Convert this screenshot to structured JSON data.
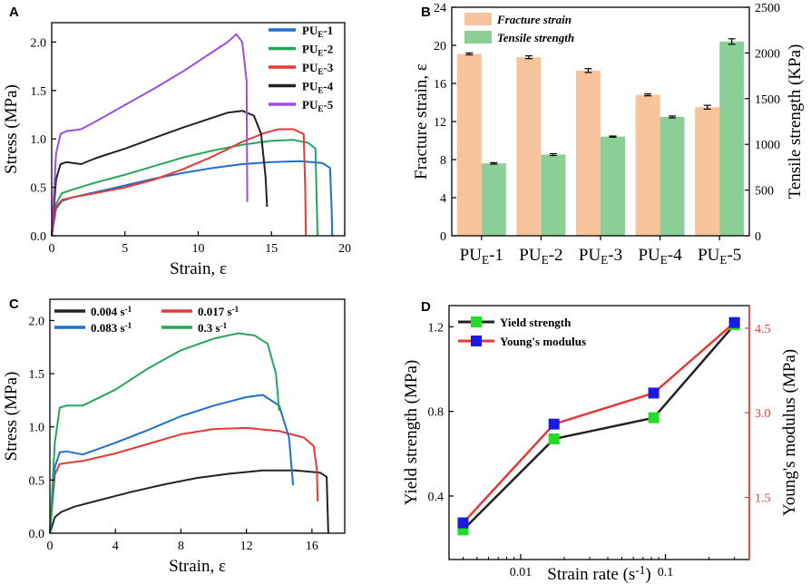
{
  "chart_data": [
    {
      "panel": "A",
      "type": "line",
      "xlabel": "Strain, ε",
      "ylabel": "Stress (MPa)",
      "xlim": [
        0,
        20
      ],
      "ylim": [
        0,
        2.2
      ],
      "xticks": [
        0,
        5,
        10,
        15,
        20
      ],
      "yticks": [
        0.0,
        0.5,
        1.0,
        1.5,
        2.0
      ],
      "xtick_labels": [
        "0",
        "5",
        "10",
        "15",
        "20"
      ],
      "ytick_labels": [
        "0.0",
        "0.5",
        "1.0",
        "1.5",
        "2.0"
      ],
      "legend_position": "top-right",
      "series": [
        {
          "name": "PU",
          "sub": "E",
          "suffix": "-1",
          "color": "#1f6fd1",
          "x": [
            0,
            0.3,
            0.7,
            1.5,
            3,
            5,
            7,
            9,
            11,
            13,
            15,
            17,
            18.5,
            19,
            19.1,
            19.15
          ],
          "y": [
            0,
            0.28,
            0.36,
            0.4,
            0.45,
            0.52,
            0.59,
            0.65,
            0.7,
            0.74,
            0.76,
            0.77,
            0.75,
            0.7,
            0.3,
            0.0
          ]
        },
        {
          "name": "PU",
          "sub": "E",
          "suffix": "-2",
          "color": "#26a65b",
          "x": [
            0,
            0.3,
            0.7,
            1.5,
            3,
            5,
            7,
            9,
            11,
            13,
            15,
            16.5,
            17.5,
            18.0,
            18.1,
            18.15
          ],
          "y": [
            0,
            0.33,
            0.44,
            0.48,
            0.55,
            0.63,
            0.72,
            0.81,
            0.88,
            0.94,
            0.98,
            0.99,
            0.96,
            0.9,
            0.3,
            0.0
          ]
        },
        {
          "name": "PU",
          "sub": "E",
          "suffix": "-3",
          "color": "#e53935",
          "x": [
            0,
            0.3,
            0.7,
            1.5,
            3,
            5,
            7,
            9,
            11,
            13,
            14.5,
            15.5,
            16.5,
            17.2,
            17.3,
            17.35
          ],
          "y": [
            0,
            0.3,
            0.37,
            0.4,
            0.44,
            0.5,
            0.58,
            0.69,
            0.82,
            0.97,
            1.06,
            1.1,
            1.1,
            1.05,
            0.5,
            0.0
          ]
        },
        {
          "name": "PU",
          "sub": "E",
          "suffix": "-4",
          "color": "#222222",
          "x": [
            0,
            0.3,
            0.6,
            1,
            2,
            3,
            5,
            7,
            9,
            11,
            12,
            13,
            13.8,
            14.3,
            14.6,
            14.7
          ],
          "y": [
            0,
            0.58,
            0.74,
            0.76,
            0.74,
            0.8,
            0.9,
            1.01,
            1.12,
            1.22,
            1.27,
            1.29,
            1.24,
            1.05,
            0.6,
            0.3
          ]
        },
        {
          "name": "PU",
          "sub": "E",
          "suffix": "-5",
          "color": "#9b4fe0",
          "x": [
            0,
            0.3,
            0.6,
            1,
            2,
            3,
            5,
            7,
            9,
            11,
            12,
            12.6,
            13.0,
            13.3,
            13.35
          ],
          "y": [
            0,
            0.85,
            1.05,
            1.08,
            1.1,
            1.18,
            1.35,
            1.52,
            1.7,
            1.9,
            2.0,
            2.08,
            2.0,
            1.6,
            0.35
          ]
        }
      ]
    },
    {
      "panel": "B",
      "type": "bar",
      "categories": [
        "PU",
        "PU",
        "PU",
        "PU",
        "PU"
      ],
      "category_subs": [
        "E",
        "E",
        "E",
        "E",
        "E"
      ],
      "category_suffixes": [
        "-1",
        "-2",
        "-3",
        "-4",
        "-5"
      ],
      "ylabel": "Fracture strain, ε",
      "ylabel_right": "Tensile strength (KPa)",
      "ylim": [
        0,
        24
      ],
      "ylim_right": [
        0,
        2500
      ],
      "yticks": [
        0,
        4,
        8,
        12,
        16,
        20,
        24
      ],
      "ytick_labels": [
        "0",
        "4",
        "8",
        "12",
        "16",
        "20",
        "24"
      ],
      "yticks_right": [
        0,
        500,
        1000,
        1500,
        2000,
        2500
      ],
      "ytick_labels_right": [
        "0",
        "500",
        "1000",
        "1500",
        "2000",
        "2500"
      ],
      "legend_position": "top-left",
      "series": [
        {
          "name": "Fracture strain",
          "axis": "left",
          "color": "#f7c49b",
          "values": [
            19.1,
            18.75,
            17.35,
            14.8,
            13.5
          ],
          "errors": [
            0.1,
            0.15,
            0.2,
            0.1,
            0.2
          ]
        },
        {
          "name": "Tensile strength",
          "axis": "right",
          "color": "#8ccf96",
          "values": [
            792,
            888,
            1085,
            1300,
            2125
          ],
          "errors": [
            8,
            10,
            6,
            10,
            30
          ]
        }
      ]
    },
    {
      "panel": "C",
      "type": "line",
      "xlabel": "Strain, ε",
      "ylabel": "Stress (MPa)",
      "xlim": [
        0,
        18
      ],
      "ylim": [
        0,
        2.2
      ],
      "xticks": [
        0,
        4,
        8,
        12,
        16
      ],
      "yticks": [
        0.0,
        0.5,
        1.0,
        1.5,
        2.0
      ],
      "xtick_labels": [
        "0",
        "4",
        "8",
        "12",
        "16"
      ],
      "ytick_labels": [
        "0.0",
        "0.5",
        "1.0",
        "1.5",
        "2.0"
      ],
      "legend_position": "top",
      "series": [
        {
          "name": "0.004 s",
          "sup": "-1",
          "color": "#222222",
          "x": [
            0,
            0.3,
            0.7,
            1.5,
            3,
            5,
            7,
            9,
            11,
            13,
            15,
            16.5,
            16.9,
            17.0
          ],
          "y": [
            0,
            0.15,
            0.2,
            0.25,
            0.31,
            0.39,
            0.46,
            0.52,
            0.56,
            0.59,
            0.59,
            0.57,
            0.53,
            0.0
          ]
        },
        {
          "name": "0.017 s",
          "sup": "-1",
          "color": "#e53935",
          "x": [
            0,
            0.3,
            0.6,
            1,
            2,
            4,
            6,
            8,
            10,
            12,
            14,
            15.5,
            16.1,
            16.3,
            16.35
          ],
          "y": [
            0,
            0.55,
            0.65,
            0.66,
            0.68,
            0.75,
            0.84,
            0.93,
            0.98,
            0.99,
            0.96,
            0.9,
            0.82,
            0.6,
            0.3
          ]
        },
        {
          "name": "0.083 s",
          "sup": "-1",
          "color": "#1f6fd1",
          "x": [
            0,
            0.3,
            0.6,
            1,
            2,
            4,
            6,
            8,
            10,
            12,
            13,
            14,
            14.6,
            14.85
          ],
          "y": [
            0,
            0.62,
            0.76,
            0.77,
            0.74,
            0.85,
            0.97,
            1.1,
            1.2,
            1.28,
            1.3,
            1.2,
            0.9,
            0.45
          ]
        },
        {
          "name": "0.3 s",
          "sup": "-1",
          "color": "#26a65b",
          "x": [
            0,
            0.3,
            0.6,
            1,
            2,
            4,
            6,
            8,
            10,
            11.5,
            12.5,
            13.3,
            13.8,
            14.0
          ],
          "y": [
            0,
            0.85,
            1.18,
            1.2,
            1.2,
            1.35,
            1.55,
            1.72,
            1.83,
            1.88,
            1.86,
            1.78,
            1.5,
            1.15
          ]
        }
      ]
    },
    {
      "panel": "D",
      "type": "line",
      "xscale": "log",
      "xlabel": "Strain rate (s",
      "xlabel_sup": "-1",
      "xlabel_tail": ")",
      "ylabel": "Yield strength (MPa)",
      "ylabel_right": "Young's modulus (MPa)",
      "xlim": [
        0.0032,
        0.38
      ],
      "ylim": [
        0.1,
        1.3
      ],
      "ylim_right": [
        0.4,
        4.9
      ],
      "xticks": [
        0.01,
        0.1
      ],
      "xtick_labels": [
        "0.01",
        "0.1"
      ],
      "yticks": [
        0.4,
        0.8,
        1.2
      ],
      "ytick_labels": [
        "0.4",
        "0.8",
        "1.2"
      ],
      "yticks_right": [
        1.5,
        3.0,
        4.5
      ],
      "ytick_labels_right": [
        "1.5",
        "3.0",
        "4.5"
      ],
      "legend_position": "top-left",
      "x": [
        0.004,
        0.017,
        0.083,
        0.3
      ],
      "series": [
        {
          "name": "Yield strength",
          "axis": "left",
          "color": "#222222",
          "marker_color": "#22dd22",
          "values": [
            0.24,
            0.67,
            0.77,
            1.21
          ]
        },
        {
          "name": "Young's modulus",
          "axis": "right",
          "color": "#e53935",
          "marker_color": "#1a1ae6",
          "values": [
            1.05,
            2.8,
            3.35,
            4.6
          ]
        }
      ]
    }
  ]
}
